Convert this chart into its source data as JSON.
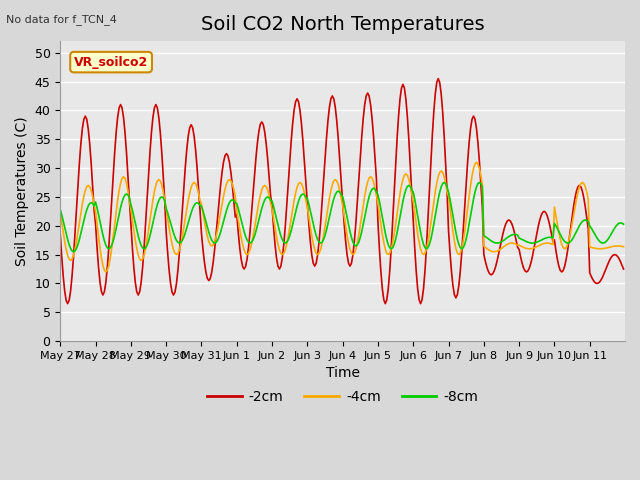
{
  "title": "Soil CO2 North Temperatures",
  "subtitle": "No data for f_TCN_4",
  "xlabel": "Time",
  "ylabel": "Soil Temperatures (C)",
  "ylim": [
    0,
    52
  ],
  "yticks": [
    0,
    5,
    10,
    15,
    20,
    25,
    30,
    35,
    40,
    45,
    50
  ],
  "x_labels": [
    "May 27",
    "May 28",
    "May 29",
    "May 30",
    "May 31",
    "Jun 1",
    "Jun 2",
    "Jun 3",
    "Jun 4",
    "Jun 5",
    "Jun 6",
    "Jun 7",
    "Jun 8",
    "Jun 9",
    "Jun 10",
    "Jun 11"
  ],
  "legend_label": "VR_soilco2",
  "series_labels": [
    "-2cm",
    "-4cm",
    "-8cm"
  ],
  "series_colors": [
    "#cc0000",
    "#ffaa00",
    "#00cc00"
  ],
  "background_color": "#d8d8d8",
  "plot_bg_color": "#e8e8e8",
  "grid_color": "#ffffff",
  "title_fontsize": 14,
  "label_fontsize": 10,
  "tick_fontsize": 9
}
